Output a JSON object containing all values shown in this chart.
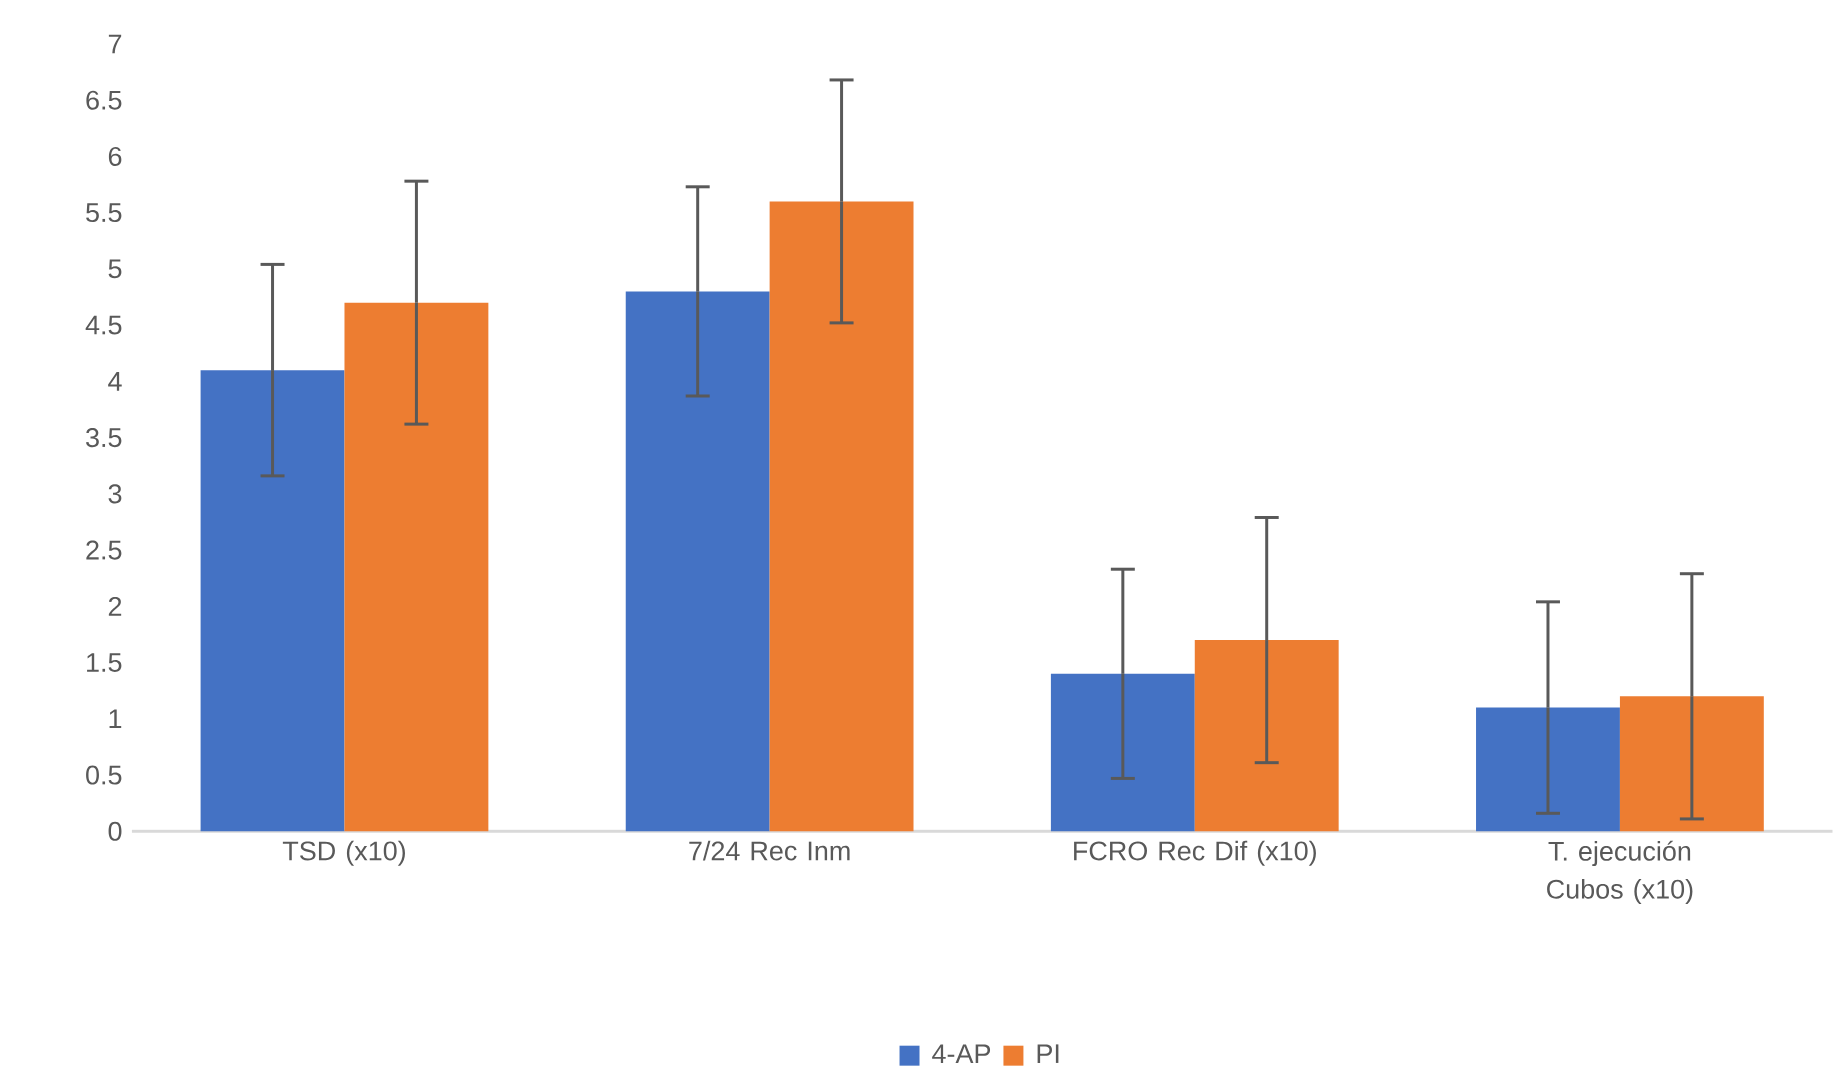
{
  "chart_data": {
    "type": "bar",
    "categories": [
      "TSD (x10)",
      "7/24 Rec Inm",
      "FCRO Rec Dif (x10)",
      "T. ejecución Cubos (x10)"
    ],
    "series": [
      {
        "name": "4-AP",
        "color": "#4472c4",
        "values": [
          4.1,
          4.8,
          1.4,
          1.1
        ],
        "errors": [
          0.94,
          0.93,
          0.93,
          0.94
        ]
      },
      {
        "name": "PI",
        "color": "#ed7d31",
        "values": [
          4.7,
          5.6,
          1.7,
          1.2
        ],
        "errors": [
          1.08,
          1.08,
          1.09,
          1.09
        ]
      }
    ],
    "ylim": [
      0,
      7
    ],
    "yticks": [
      0,
      0.5,
      1,
      1.5,
      2,
      2.5,
      3,
      3.5,
      4,
      4.5,
      5,
      5.5,
      6,
      6.5,
      7
    ],
    "legend": "bottom"
  }
}
